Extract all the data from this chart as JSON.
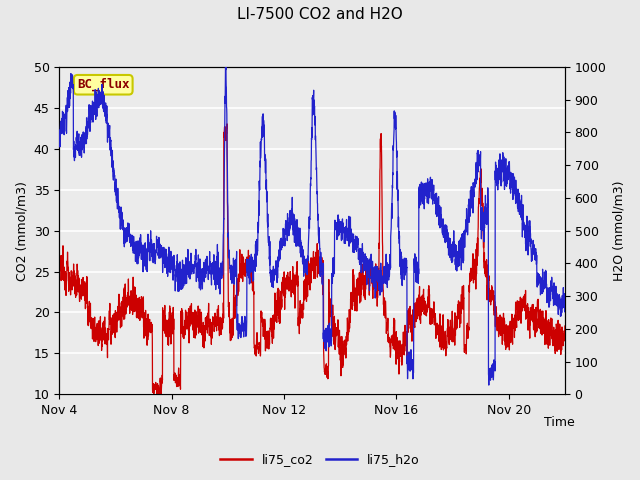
{
  "title": "LI-7500 CO2 and H2O",
  "ylabel_left": "CO2 (mmol/m3)",
  "ylabel_right": "H2O (mmol/m3)",
  "xlabel": "Time",
  "ylim_left": [
    10,
    50
  ],
  "ylim_right": [
    0,
    1000
  ],
  "yticks_left": [
    10,
    15,
    20,
    25,
    30,
    35,
    40,
    45,
    50
  ],
  "yticks_right": [
    0,
    100,
    200,
    300,
    400,
    500,
    600,
    700,
    800,
    900,
    1000
  ],
  "xtick_positions": [
    0,
    4,
    8,
    12,
    16
  ],
  "xtick_labels": [
    "Nov 4",
    "Nov 8",
    "Nov 12",
    "Nov 16",
    "Nov 20"
  ],
  "xlim": [
    0,
    18
  ],
  "fig_bg_color": "#e8e8e8",
  "plot_bg_color": "#ebebeb",
  "grid_color": "#ffffff",
  "co2_color": "#cc0000",
  "h2o_color": "#2222cc",
  "legend_co2": "li75_co2",
  "legend_h2o": "li75_h2o",
  "annotation_text": "BC_flux",
  "annotation_color": "#8b0000",
  "annotation_bg": "#ffffa0",
  "annotation_border": "#c8c800",
  "title_fontsize": 11,
  "label_fontsize": 9,
  "tick_fontsize": 9,
  "linewidth": 0.9
}
